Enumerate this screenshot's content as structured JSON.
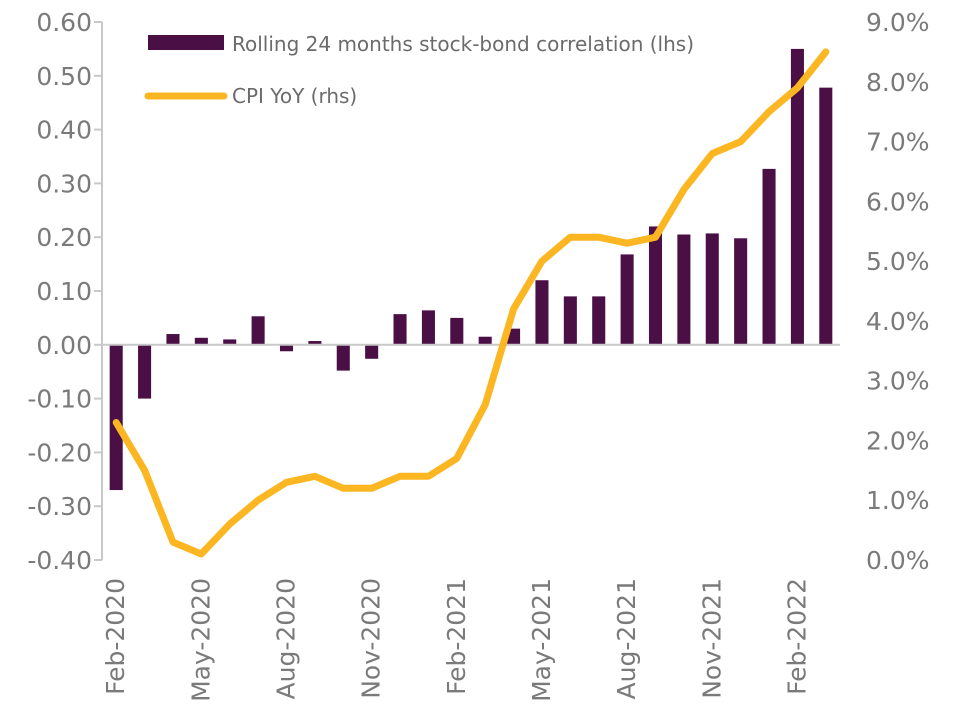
{
  "chart_data": {
    "type": "bar+line",
    "categories": [
      "Feb-2020",
      "Mar-2020",
      "Apr-2020",
      "May-2020",
      "Jun-2020",
      "Jul-2020",
      "Aug-2020",
      "Sep-2020",
      "Oct-2020",
      "Nov-2020",
      "Dec-2020",
      "Jan-2021",
      "Feb-2021",
      "Mar-2021",
      "Apr-2021",
      "May-2021",
      "Jun-2021",
      "Jul-2021",
      "Aug-2021",
      "Sep-2021",
      "Oct-2021",
      "Nov-2021",
      "Dec-2021",
      "Jan-2022",
      "Feb-2022",
      "Mar-2022"
    ],
    "x_tick_labels": [
      "Feb-2020",
      "May-2020",
      "Aug-2020",
      "Nov-2020",
      "Feb-2021",
      "May-2021",
      "Aug-2021",
      "Nov-2021",
      "Feb-2022"
    ],
    "series": [
      {
        "name": "Rolling 24 months stock-bond correlation (lhs)",
        "type": "bar",
        "axis": "left",
        "color": "#4a0f45",
        "values": [
          -0.27,
          -0.1,
          0.02,
          0.013,
          0.01,
          0.053,
          -0.012,
          0.007,
          -0.048,
          -0.026,
          0.057,
          0.064,
          0.05,
          0.015,
          0.03,
          0.12,
          0.09,
          0.09,
          0.168,
          0.22,
          0.205,
          0.207,
          0.198,
          0.327,
          0.55,
          0.478
        ]
      },
      {
        "name": "CPI YoY (rhs)",
        "type": "line",
        "axis": "right",
        "color": "#fbb622",
        "values": [
          2.3,
          1.5,
          0.3,
          0.1,
          0.6,
          1.0,
          1.3,
          1.4,
          1.2,
          1.2,
          1.4,
          1.4,
          1.7,
          2.6,
          4.2,
          5.0,
          5.4,
          5.4,
          5.3,
          5.4,
          6.2,
          6.8,
          7.0,
          7.5,
          7.9,
          8.5
        ]
      }
    ],
    "left_axis": {
      "ylim": [
        -0.4,
        0.6
      ],
      "ticks": [
        0.6,
        0.5,
        0.4,
        0.3,
        0.2,
        0.1,
        0.0,
        -0.1,
        -0.2,
        -0.3,
        -0.4
      ],
      "tick_labels": [
        "0.60",
        "0.50",
        "0.40",
        "0.30",
        "0.20",
        "0.10",
        "0.00",
        "-0.10",
        "-0.20",
        "-0.30",
        "-0.40"
      ]
    },
    "right_axis": {
      "ylim": [
        0,
        9
      ],
      "ticks": [
        9,
        8,
        7,
        6,
        5,
        4,
        3,
        2,
        1,
        0
      ],
      "tick_labels": [
        "9.0%",
        "8.0%",
        "7.0%",
        "6.0%",
        "5.0%",
        "4.0%",
        "3.0%",
        "2.0%",
        "1.0%",
        "0.0%"
      ]
    },
    "grid": false,
    "legend_position": "top-left",
    "title": "",
    "xlabel": "",
    "ylabel": ""
  }
}
